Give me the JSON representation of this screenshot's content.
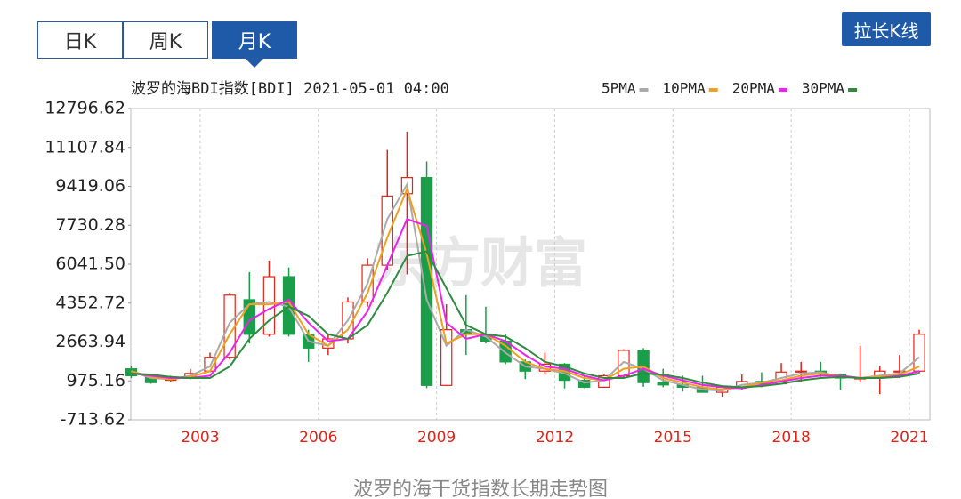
{
  "ui": {
    "tabs": [
      "日K",
      "周K",
      "月K"
    ],
    "button": "拉长K线",
    "caption": "波罗的海干货指数长期走势图",
    "watermark": "东方财富"
  },
  "chart_data": {
    "type": "candlestick",
    "title": "波罗的海BDI指数[BDI] 2021-05-01 04:00",
    "x": [
      2001.25,
      2001.75,
      2002.25,
      2002.75,
      2003.25,
      2003.75,
      2004.25,
      2004.75,
      2005.25,
      2005.75,
      2006.25,
      2006.75,
      2007.25,
      2007.75,
      2008.25,
      2008.75,
      2009.25,
      2009.75,
      2010.25,
      2010.75,
      2011.25,
      2011.75,
      2012.25,
      2012.75,
      2013.25,
      2013.75,
      2014.25,
      2014.75,
      2015.25,
      2015.75,
      2016.25,
      2016.75,
      2017.25,
      2017.75,
      2018.25,
      2018.75,
      2019.25,
      2019.75,
      2020.25,
      2020.75,
      2021.25
    ],
    "open": [
      1500,
      1200,
      1000,
      1100,
      1400,
      2000,
      4500,
      3000,
      5500,
      3000,
      2400,
      2800,
      4400,
      6000,
      9100,
      9800,
      780,
      3200,
      3000,
      2700,
      1800,
      1400,
      1700,
      1000,
      700,
      1200,
      2300,
      900,
      800,
      700,
      480,
      700,
      950,
      850,
      1360,
      1400,
      1270,
      1100,
      1100,
      1400,
      1400
    ],
    "high": [
      1600,
      1250,
      1200,
      1500,
      2200,
      4800,
      5700,
      6200,
      5900,
      3200,
      3000,
      4600,
      6300,
      11000,
      11800,
      10500,
      4300,
      4700,
      4200,
      3000,
      1900,
      2200,
      1750,
      1200,
      1250,
      2350,
      2400,
      1500,
      1200,
      1200,
      750,
      1250,
      1350,
      1750,
      1800,
      1800,
      1300,
      2500,
      1600,
      2100,
      3200
    ],
    "low": [
      1100,
      850,
      950,
      1050,
      1350,
      1900,
      2600,
      2900,
      2900,
      1800,
      2100,
      2600,
      4200,
      5800,
      5600,
      660,
      770,
      2100,
      2600,
      1700,
      1050,
      1250,
      650,
      660,
      700,
      1100,
      720,
      700,
      510,
      470,
      290,
      600,
      700,
      840,
      950,
      1150,
      600,
      900,
      400,
      1100,
      1300
    ],
    "close": [
      1200,
      900,
      1100,
      1300,
      2000,
      4700,
      3000,
      5500,
      3000,
      2400,
      2800,
      4400,
      6000,
      9000,
      9800,
      780,
      3200,
      3000,
      2700,
      1800,
      1400,
      1700,
      1000,
      700,
      1200,
      2300,
      900,
      800,
      700,
      480,
      700,
      950,
      850,
      1360,
      1400,
      1270,
      1100,
      1100,
      1400,
      1400,
      3000
    ],
    "up_color": "#e2231a",
    "down_color": "#1a9e4a",
    "series": [
      {
        "name": "5PMA",
        "color": "#aaaaaa",
        "values": [
          1400,
          1100,
          1050,
          1200,
          1600,
          3500,
          4300,
          4400,
          4200,
          2700,
          2500,
          3600,
          5200,
          8000,
          9500,
          4500,
          2500,
          3200,
          2900,
          2200,
          1600,
          1500,
          1300,
          900,
          1000,
          1800,
          1500,
          1000,
          800,
          600,
          550,
          800,
          900,
          1100,
          1300,
          1350,
          1150,
          1100,
          1200,
          1300,
          2000
        ]
      },
      {
        "name": "10PMA",
        "color": "#f0a020",
        "values": [
          1400,
          1150,
          1050,
          1150,
          1400,
          3000,
          4300,
          4300,
          4400,
          3000,
          2500,
          3200,
          4800,
          7200,
          9300,
          6500,
          2600,
          3000,
          3000,
          2500,
          1800,
          1500,
          1400,
          1100,
          1000,
          1500,
          1600,
          1100,
          900,
          700,
          600,
          700,
          900,
          1000,
          1200,
          1300,
          1200,
          1100,
          1150,
          1250,
          1600
        ]
      },
      {
        "name": "20PMA",
        "color": "#ee22ee",
        "values": [
          1300,
          1200,
          1100,
          1100,
          1200,
          2200,
          3600,
          4100,
          4500,
          3500,
          2700,
          2800,
          4000,
          6000,
          8000,
          7700,
          3500,
          2800,
          3000,
          2700,
          2100,
          1600,
          1500,
          1200,
          1000,
          1200,
          1500,
          1200,
          1000,
          800,
          700,
          650,
          800,
          950,
          1100,
          1200,
          1200,
          1100,
          1100,
          1200,
          1400
        ]
      },
      {
        "name": "30PMA",
        "color": "#2e8b3e",
        "values": [
          1300,
          1250,
          1150,
          1100,
          1100,
          1600,
          2800,
          3600,
          4200,
          3800,
          3000,
          2800,
          3400,
          4800,
          6400,
          6600,
          5000,
          3400,
          3000,
          2900,
          2400,
          1800,
          1600,
          1300,
          1100,
          1100,
          1300,
          1250,
          1100,
          900,
          750,
          700,
          750,
          850,
          1000,
          1100,
          1150,
          1100,
          1100,
          1150,
          1300
        ]
      }
    ],
    "ylim": [
      -713.62,
      12796.62
    ],
    "yticks": [
      12796.62,
      11107.84,
      9419.06,
      7730.28,
      {
        "value": 6041.5,
        "label": "6041.50"
      },
      4352.72,
      2663.94,
      975.16,
      -713.62
    ],
    "xlim": [
      2001.24,
      2021.52
    ],
    "xticks": [
      2003,
      2006,
      2009,
      2012,
      2015,
      2018,
      2021
    ],
    "xtick_color": "#e2231a",
    "grid": true
  }
}
